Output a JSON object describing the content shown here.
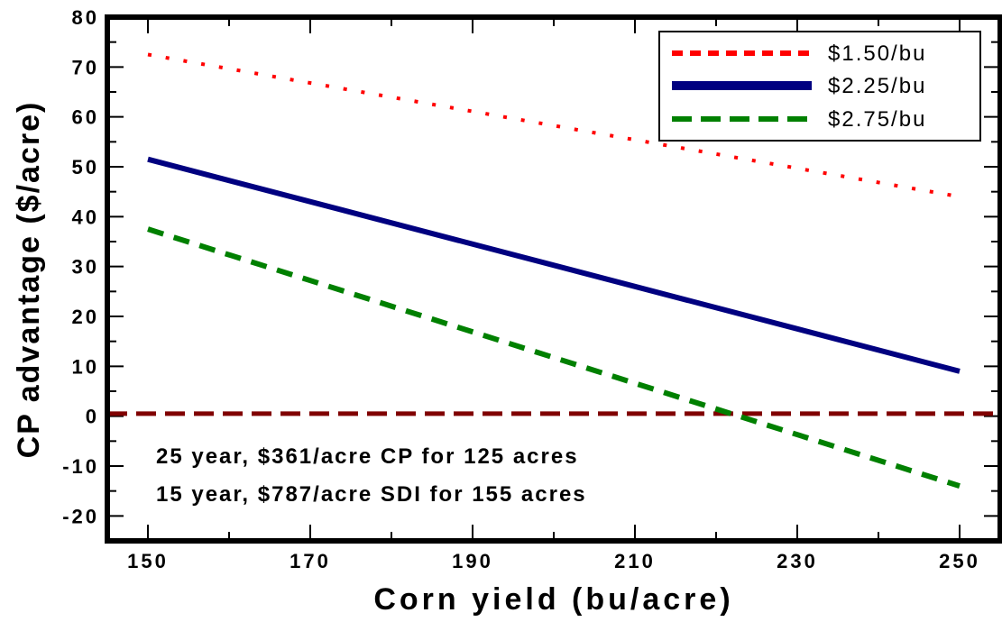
{
  "chart_data": {
    "type": "line",
    "xlabel": "Corn yield (bu/acre)",
    "ylabel": "CP advantage ($/acre)",
    "xlim": [
      145,
      255
    ],
    "ylim": [
      -25,
      80
    ],
    "x_ticks": [
      150,
      170,
      190,
      210,
      230,
      250
    ],
    "y_ticks": [
      80,
      70,
      60,
      50,
      40,
      30,
      20,
      10,
      0,
      -10,
      -20
    ],
    "grid": false,
    "legend_position": "top-right",
    "series": [
      {
        "name": "$1.50/bu",
        "color": "#ff0000",
        "style": "dotted",
        "x": [
          150,
          250
        ],
        "y": [
          72.5,
          44
        ]
      },
      {
        "name": "$2.25/bu",
        "color": "#000080",
        "style": "solid",
        "x": [
          150,
          250
        ],
        "y": [
          51.5,
          9
        ]
      },
      {
        "name": "$2.75/bu",
        "color": "#008000",
        "style": "dashed",
        "x": [
          150,
          250
        ],
        "y": [
          37.5,
          -14
        ]
      }
    ],
    "reference_line": {
      "y": 0.5,
      "color": "#800000",
      "style": "dashed"
    },
    "annotations": [
      "25 year, $361/acre CP for 125 acres",
      "15 year, $787/acre SDI for 155 acres"
    ]
  }
}
